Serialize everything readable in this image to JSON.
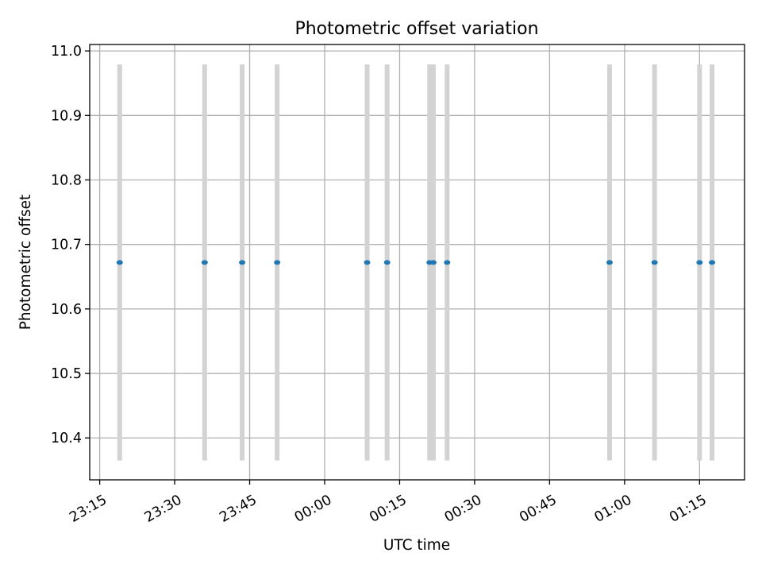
{
  "chart_data": {
    "type": "scatter",
    "title": "Photometric offset variation",
    "xlabel": "UTC time",
    "ylabel": "Photometric offset",
    "x_axis_type": "time",
    "x_ticks": [
      "23:15",
      "23:30",
      "23:45",
      "00:00",
      "00:15",
      "00:30",
      "00:45",
      "01:00",
      "01:15"
    ],
    "y_ticks": [
      "10.4",
      "10.5",
      "10.6",
      "10.7",
      "10.8",
      "10.9",
      "11.0"
    ],
    "x_range": [
      "23:13:00",
      "01:24:00"
    ],
    "ylim": [
      10.335,
      11.01
    ],
    "grid": true,
    "series": [
      {
        "marker_color": "#1f77b4",
        "errorbar_color": "#d3d3d3",
        "points": [
          {
            "x": "23:19:00",
            "y": 10.672,
            "y_err": 0.307
          },
          {
            "x": "23:36:00",
            "y": 10.672,
            "y_err": 0.307
          },
          {
            "x": "23:43:30",
            "y": 10.672,
            "y_err": 0.307
          },
          {
            "x": "23:50:30",
            "y": 10.672,
            "y_err": 0.307
          },
          {
            "x": "00:08:30",
            "y": 10.672,
            "y_err": 0.307
          },
          {
            "x": "00:12:30",
            "y": 10.672,
            "y_err": 0.307
          },
          {
            "x": "00:21:00",
            "y": 10.672,
            "y_err": 0.307
          },
          {
            "x": "00:21:45",
            "y": 10.672,
            "y_err": 0.307
          },
          {
            "x": "00:24:30",
            "y": 10.672,
            "y_err": 0.307
          },
          {
            "x": "00:57:00",
            "y": 10.672,
            "y_err": 0.307
          },
          {
            "x": "01:06:00",
            "y": 10.672,
            "y_err": 0.307
          },
          {
            "x": "01:15:00",
            "y": 10.672,
            "y_err": 0.307
          },
          {
            "x": "01:17:30",
            "y": 10.672,
            "y_err": 0.307
          }
        ]
      }
    ]
  }
}
